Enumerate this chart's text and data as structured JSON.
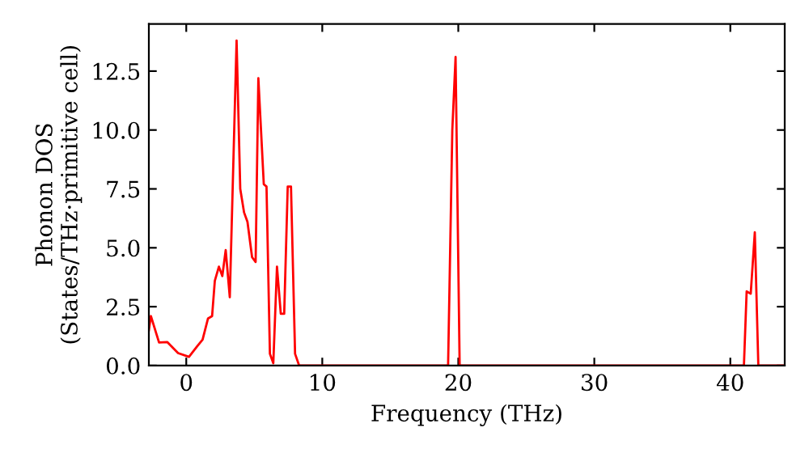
{
  "chart_data": {
    "type": "line",
    "xlabel": "Frequency (THz)",
    "ylabel": "Phonon DOS\n(States/THz·primitive cell)",
    "xlim": [
      -2.75,
      44
    ],
    "ylim": [
      0,
      14.5
    ],
    "xticks": [
      0,
      10,
      20,
      30,
      40
    ],
    "yticks": [
      {
        "value": 0,
        "label": "0.0"
      },
      2.5,
      {
        "value": 5,
        "label": "5.0"
      },
      7.5,
      {
        "value": 10,
        "label": "10.0"
      },
      12.5
    ],
    "grid": false,
    "legend": false,
    "marker": "none",
    "line_style": "solid",
    "series": [
      {
        "color": "#ff0000",
        "x": [
          -2.75,
          -2.6,
          -2.0,
          -1.4,
          -0.6,
          0.2,
          0.8,
          1.2,
          1.6,
          1.9,
          2.1,
          2.4,
          2.65,
          2.9,
          3.2,
          3.7,
          3.97,
          4.25,
          4.5,
          4.84,
          5.1,
          5.3,
          5.7,
          5.9,
          6.15,
          6.4,
          6.67,
          6.95,
          7.2,
          7.46,
          7.7,
          8.0,
          8.3,
          19.25,
          19.56,
          19.8,
          20.1,
          41.0,
          41.2,
          41.5,
          41.8,
          42.06,
          44
        ],
        "values": [
          1.5,
          2.1,
          0.98,
          1.0,
          0.53,
          0.37,
          0.82,
          1.1,
          2.0,
          2.1,
          3.6,
          4.2,
          3.8,
          4.9,
          2.9,
          13.8,
          7.5,
          6.5,
          6.1,
          4.6,
          4.4,
          12.2,
          7.7,
          7.6,
          0.5,
          0.1,
          4.2,
          2.2,
          2.2,
          7.6,
          7.6,
          0.5,
          0,
          0,
          10.0,
          13.1,
          0,
          0,
          3.15,
          3.05,
          5.66,
          0,
          0
        ]
      }
    ]
  }
}
